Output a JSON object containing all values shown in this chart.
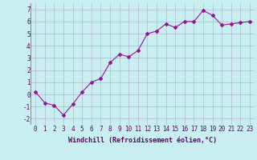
{
  "x": [
    0,
    1,
    2,
    3,
    4,
    5,
    6,
    7,
    8,
    9,
    10,
    11,
    12,
    13,
    14,
    15,
    16,
    17,
    18,
    19,
    20,
    21,
    22,
    23
  ],
  "y": [
    0.2,
    -0.7,
    -0.9,
    -1.7,
    -0.8,
    0.2,
    1.0,
    1.3,
    2.6,
    3.3,
    3.1,
    3.6,
    5.0,
    5.2,
    5.8,
    5.5,
    6.0,
    6.0,
    6.9,
    6.5,
    5.7,
    5.8,
    5.9,
    6.0
  ],
  "line_color": "#991199",
  "marker": "D",
  "markersize": 2,
  "linewidth": 0.8,
  "xlim": [
    -0.5,
    23.5
  ],
  "ylim": [
    -2.5,
    7.5
  ],
  "yticks": [
    -2,
    -1,
    0,
    1,
    2,
    3,
    4,
    5,
    6,
    7
  ],
  "xticks": [
    0,
    1,
    2,
    3,
    4,
    5,
    6,
    7,
    8,
    9,
    10,
    11,
    12,
    13,
    14,
    15,
    16,
    17,
    18,
    19,
    20,
    21,
    22,
    23
  ],
  "xlabel": "Windchill (Refroidissement éolien,°C)",
  "xlabel_fontsize": 6,
  "tick_fontsize": 5.5,
  "background_color": "#c8eef0",
  "grid_color": "#aaaacc",
  "label_color": "#660066"
}
